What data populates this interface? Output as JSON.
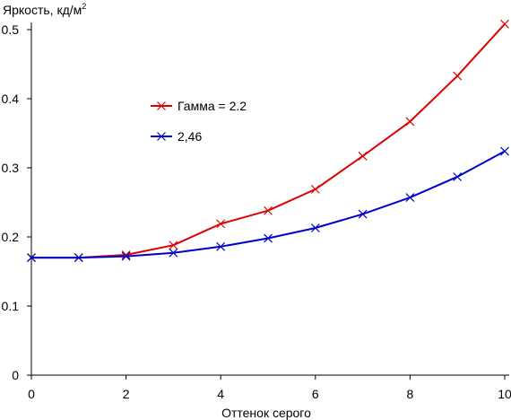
{
  "chart_data": {
    "type": "line",
    "title": "",
    "xlabel": "Оттенок серого",
    "ylabel": "Яркость, кд/м",
    "ylabel_superscript": "2",
    "xlim": [
      0,
      10
    ],
    "ylim": [
      0,
      0.5
    ],
    "xticks": [
      0,
      2,
      4,
      6,
      8,
      10
    ],
    "xtick_labels": [
      "0",
      "2",
      "4",
      "6",
      "8",
      "10"
    ],
    "yticks": [
      0,
      0.1,
      0.2,
      0.3,
      0.4,
      0.5
    ],
    "ytick_labels": [
      "0",
      "0.1",
      "0.2",
      "0.3",
      "0.4",
      "0.5"
    ],
    "grid": false,
    "legend_position": "upper-left inside plot",
    "x": [
      0,
      1,
      2,
      3,
      4,
      5,
      6,
      7,
      8,
      9,
      10
    ],
    "series": [
      {
        "name": "Гамма = 2.2",
        "color": "#dd0000",
        "marker": "x",
        "values": [
          0.17,
          0.17,
          0.174,
          0.188,
          0.219,
          0.238,
          0.269,
          0.317,
          0.367,
          0.433,
          0.508
        ]
      },
      {
        "name": "2,46",
        "color": "#0000cc",
        "marker": "x",
        "values": [
          0.17,
          0.17,
          0.172,
          0.177,
          0.186,
          0.198,
          0.213,
          0.233,
          0.257,
          0.287,
          0.324
        ]
      }
    ]
  }
}
